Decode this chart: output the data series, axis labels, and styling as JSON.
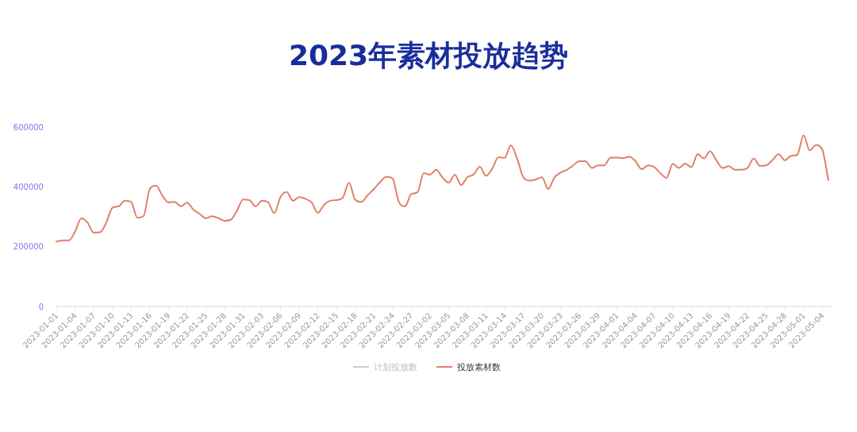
{
  "chart_data": {
    "type": "line",
    "title": "2023年素材投放趋势",
    "categories": [
      "2023-01-01",
      null,
      null,
      "2023-01-04",
      null,
      null,
      "2023-01-07",
      null,
      null,
      "2023-01-10",
      null,
      null,
      "2023-01-13",
      null,
      null,
      "2023-01-16",
      null,
      null,
      "2023-01-19",
      null,
      null,
      "2023-01-22",
      null,
      null,
      "2023-01-25",
      null,
      null,
      "2023-01-28",
      null,
      null,
      "2023-01-31",
      null,
      null,
      "2023-02-03",
      null,
      null,
      "2023-02-06",
      null,
      null,
      "2023-02-09",
      null,
      null,
      "2023-02-12",
      null,
      null,
      "2023-02-15",
      null,
      null,
      "2023-02-18",
      null,
      null,
      "2023-02-21",
      null,
      null,
      "2023-02-24",
      null,
      null,
      "2023-02-27",
      null,
      null,
      "2023-03-02",
      null,
      null,
      "2023-03-05",
      null,
      null,
      "2023-03-08",
      null,
      null,
      "2023-03-11",
      null,
      null,
      "2023-03-14",
      null,
      null,
      "2023-03-17",
      null,
      null,
      "2023-03-20",
      null,
      null,
      "2023-03-23",
      null,
      null,
      "2023-03-26",
      null,
      null,
      "2023-03-29",
      null,
      null,
      "2023-04-01",
      null,
      null,
      "2023-04-04",
      null,
      null,
      "2023-04-07",
      null,
      null,
      "2023-04-10",
      null,
      null,
      "2023-04-13",
      null,
      null,
      "2023-04-16",
      null,
      null,
      "2023-04-19",
      null,
      null,
      "2023-04-22",
      null,
      null,
      "2023-04-25",
      null,
      null,
      "2023-04-28",
      null,
      null,
      "2023-05-01",
      null,
      null,
      "2023-05-04",
      null
    ],
    "series": [
      {
        "name": "计划投放数",
        "color": "#cccccc",
        "values": [
          null,
          null,
          null,
          null,
          null,
          null,
          null,
          null,
          null,
          null,
          null,
          null,
          null,
          null,
          null,
          null,
          null,
          null,
          null,
          null,
          null,
          null,
          null,
          null,
          null,
          null,
          null,
          null,
          null,
          null,
          null,
          null,
          null,
          null,
          null,
          null,
          null,
          null,
          null,
          null,
          null,
          null,
          null,
          null,
          null,
          null,
          null,
          null,
          null,
          null,
          null,
          null,
          null,
          null,
          null,
          null,
          null,
          null,
          null,
          null,
          null,
          null,
          null,
          null,
          null,
          null,
          null,
          null,
          null,
          null,
          null,
          null,
          null,
          null,
          null,
          null,
          null,
          null,
          null,
          null,
          null,
          null,
          null,
          null,
          null,
          null,
          null,
          null,
          null,
          null,
          null,
          null,
          null,
          null,
          null,
          null,
          null,
          null,
          null,
          null,
          null,
          null,
          null,
          null,
          null,
          null,
          null,
          null,
          null,
          null,
          null,
          null,
          null,
          null,
          null,
          null,
          null,
          null,
          null,
          null,
          null,
          null,
          null,
          null,
          null
        ]
      },
      {
        "name": "投放素材数",
        "color": "#e08068",
        "values": [
          217000,
          221000,
          221000,
          250000,
          295000,
          281000,
          247000,
          248000,
          280000,
          330000,
          335000,
          354000,
          350000,
          297000,
          302000,
          393000,
          404000,
          372000,
          348000,
          350000,
          335000,
          347000,
          324000,
          310000,
          295000,
          302000,
          296000,
          287000,
          290000,
          320000,
          358000,
          356000,
          335000,
          354000,
          349000,
          312000,
          366000,
          383000,
          354000,
          366000,
          360000,
          348000,
          313000,
          340000,
          354000,
          356000,
          364000,
          414000,
          357000,
          350000,
          372000,
          393000,
          416000,
          434000,
          428000,
          350000,
          335000,
          376000,
          382000,
          446000,
          441000,
          457000,
          432000,
          414000,
          441000,
          406000,
          432000,
          441000,
          467000,
          437000,
          461000,
          499000,
          497000,
          539000,
          495000,
          432000,
          421000,
          425000,
          432000,
          393000,
          432000,
          448000,
          457000,
          472000,
          486000,
          486000,
          463000,
          472000,
          472000,
          498000,
          498000,
          496000,
          501000,
          486000,
          459000,
          472000,
          467000,
          446000,
          430000,
          477000,
          463000,
          478000,
          466000,
          510000,
          495000,
          519000,
          489000,
          463000,
          469000,
          457000,
          457000,
          463000,
          495000,
          470000,
          472000,
          489000,
          510000,
          489000,
          504000,
          507000,
          572000,
          522000,
          540000,
          525000,
          422000
        ]
      }
    ],
    "ylim": [
      0,
      600000
    ],
    "yticks": [
      0,
      200000,
      400000,
      600000
    ],
    "legend": "bottom"
  }
}
